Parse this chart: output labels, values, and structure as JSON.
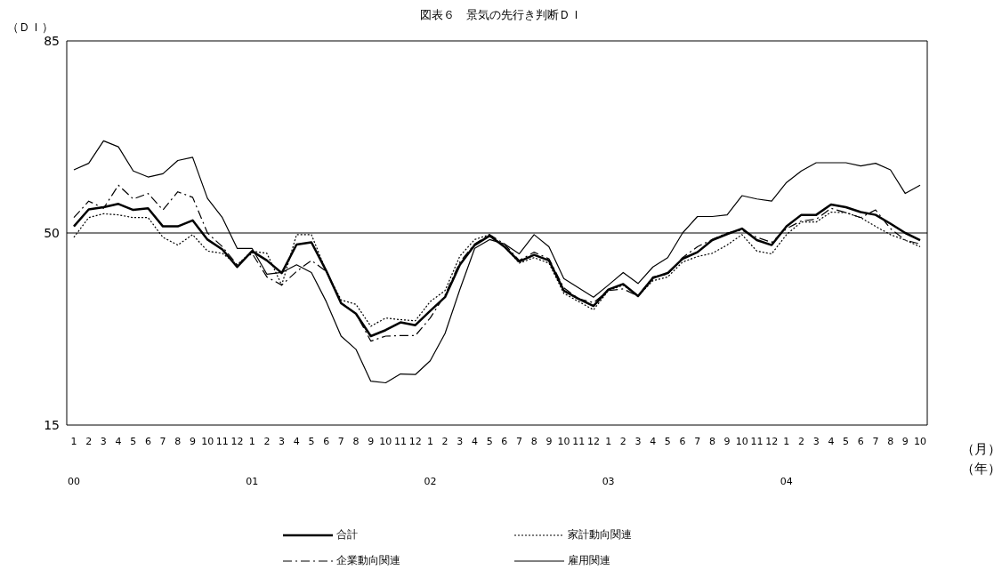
{
  "chart_data": {
    "type": "line",
    "title": "図表６　景気の先行き判断ＤＩ",
    "ylabel": "（ＤＩ）",
    "xlabel": "（月）",
    "annotations": [
      "（年）"
    ],
    "categories": [
      "1\n00",
      "2",
      "3",
      "4",
      "5",
      "6",
      "7",
      "8",
      "9",
      "10",
      "11",
      "12",
      "1\n01",
      "2",
      "3",
      "4",
      "5",
      "6",
      "7",
      "8",
      "9",
      "10",
      "11",
      "12",
      "1\n02",
      "2",
      "3",
      "4",
      "5",
      "6",
      "7",
      "8",
      "9",
      "10",
      "11",
      "12",
      "1\n03",
      "2",
      "3",
      "4",
      "5",
      "6",
      "7",
      "8",
      "9",
      "10",
      "11",
      "12",
      "1\n04",
      "2",
      "3",
      "4",
      "5",
      "6",
      "7",
      "8",
      "9",
      "10"
    ],
    "series": [
      {
        "name": "合計",
        "color": "#000000",
        "line_style": "solid",
        "values": [
          51.2,
          54.3,
          54.7,
          55.3,
          54.2,
          54.5,
          51.2,
          51.2,
          52.3,
          48.8,
          47.0,
          43.8,
          46.7,
          45.0,
          42.7,
          47.9,
          48.3,
          43.1,
          37.2,
          35.3,
          31.2,
          32.3,
          33.7,
          33.2,
          35.8,
          38.3,
          44.2,
          47.8,
          49.5,
          47.5,
          44.8,
          46.0,
          45.0,
          39.5,
          38.0,
          36.7,
          39.7,
          40.7,
          38.5,
          41.8,
          42.7,
          45.3,
          46.5,
          48.7,
          49.8,
          50.8,
          48.7,
          47.8,
          51.2,
          53.3,
          53.3,
          55.2,
          54.7,
          53.8,
          53.3,
          51.7,
          50.0,
          48.7
        ]
      },
      {
        "name": "家計動向関連",
        "color": "#000000",
        "line_style": "dotted",
        "values": [
          49.2,
          52.8,
          53.5,
          53.3,
          52.8,
          52.8,
          49.2,
          47.8,
          49.7,
          46.7,
          46.3,
          44.2,
          46.7,
          46.3,
          40.5,
          49.7,
          49.7,
          43.0,
          37.8,
          37.0,
          33.0,
          34.5,
          34.2,
          34.0,
          37.5,
          39.5,
          45.8,
          48.8,
          49.7,
          47.5,
          44.5,
          45.5,
          44.5,
          39.0,
          37.5,
          36.0,
          39.5,
          40.5,
          38.5,
          41.3,
          42.0,
          44.7,
          45.7,
          46.3,
          47.8,
          49.7,
          46.7,
          46.2,
          49.7,
          52.0,
          52.0,
          53.8,
          53.7,
          52.8,
          51.2,
          49.7,
          48.7,
          47.5
        ]
      },
      {
        "name": "企業動向関連",
        "color": "#000000",
        "line_style": "dashed",
        "values": [
          52.8,
          55.8,
          54.5,
          58.7,
          56.2,
          57.2,
          54.2,
          57.5,
          56.5,
          50.0,
          47.5,
          44.2,
          46.3,
          42.0,
          40.5,
          43.0,
          45.0,
          43.0,
          37.3,
          35.3,
          30.3,
          31.2,
          31.3,
          31.3,
          34.5,
          38.7,
          44.7,
          48.0,
          49.7,
          48.0,
          45.0,
          46.5,
          45.3,
          40.0,
          38.0,
          37.3,
          39.5,
          39.8,
          38.5,
          42.0,
          42.5,
          45.5,
          47.5,
          48.8,
          50.0,
          50.5,
          49.2,
          48.3,
          50.8,
          52.2,
          52.5,
          54.5,
          53.7,
          52.8,
          54.2,
          50.8,
          48.7,
          48.0
        ]
      },
      {
        "name": "雇用関連",
        "color": "#000000",
        "line_style": "solid",
        "values": [
          61.5,
          62.7,
          66.8,
          65.7,
          61.3,
          60.2,
          60.8,
          63.2,
          63.8,
          56.3,
          52.8,
          47.2,
          47.2,
          42.5,
          42.8,
          44.2,
          42.8,
          37.5,
          31.2,
          28.8,
          23.0,
          22.7,
          24.3,
          24.2,
          26.7,
          31.7,
          39.7,
          47.2,
          48.8,
          48.0,
          46.2,
          49.7,
          47.5,
          41.7,
          40.0,
          38.3,
          40.5,
          42.8,
          40.8,
          43.8,
          45.5,
          50.0,
          53.0,
          53.0,
          53.3,
          56.8,
          56.2,
          55.8,
          59.2,
          61.3,
          62.8,
          62.8,
          62.8,
          62.2,
          62.7,
          61.5,
          57.2,
          58.7
        ]
      }
    ],
    "ylim": [
      15,
      85
    ],
    "yticks": [
      15,
      50,
      85
    ],
    "legend": "bottom",
    "marker": "none",
    "ref_lines": [
      {
        "axis": "y",
        "value": 50,
        "color": "#000000"
      }
    ]
  }
}
